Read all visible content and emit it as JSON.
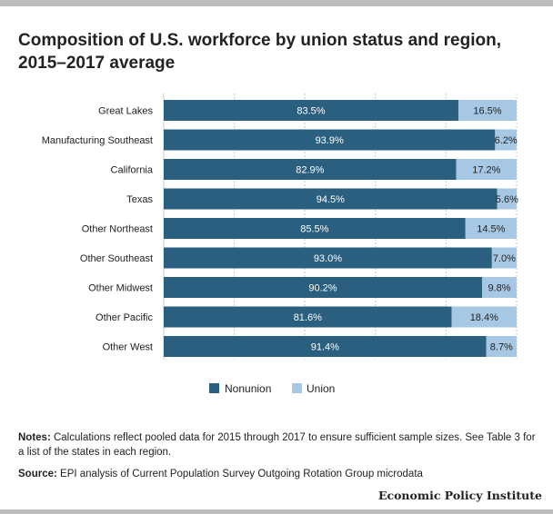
{
  "title": "Composition of U.S. workforce by union status and region, 2015–2017 average",
  "notes_label": "Notes:",
  "notes_text": "Calculations reflect pooled data for 2015 through 2017 to ensure sufficient sample sizes. See Table 3 for a list of the states in each region.",
  "source_label": "Source:",
  "source_text": "EPI analysis of Current Population Survey Outgoing Rotation Group microdata",
  "brand": "Economic Policy Institute",
  "colors": {
    "nonunion": "#2a5f80",
    "union": "#a6c8e4",
    "grid": "#c8c8c8"
  },
  "chart_data": {
    "type": "bar",
    "orientation": "horizontal",
    "stacked": true,
    "categories": [
      "Great Lakes",
      "Manufacturing Southeast",
      "California",
      "Texas",
      "Other Northeast",
      "Other Southeast",
      "Other Midwest",
      "Other Pacific",
      "Other West"
    ],
    "series": [
      {
        "name": "Nonunion",
        "values": [
          83.5,
          93.9,
          82.9,
          94.5,
          85.5,
          93.0,
          90.2,
          81.6,
          91.4
        ],
        "labels": [
          "83.5%",
          "93.9%",
          "82.9%",
          "94.5%",
          "85.5%",
          "93.0%",
          "90.2%",
          "81.6%",
          "91.4%"
        ]
      },
      {
        "name": "Union",
        "values": [
          16.5,
          6.2,
          17.2,
          5.6,
          14.5,
          7.0,
          9.8,
          18.4,
          8.7
        ],
        "labels": [
          "16.5%",
          "6.2%",
          "17.2%",
          "5.6%",
          "14.5%",
          "7.0%",
          "9.8%",
          "18.4%",
          "8.7%"
        ]
      }
    ],
    "xlim": [
      0,
      100
    ],
    "grid": true,
    "legend_position": "bottom-center"
  }
}
